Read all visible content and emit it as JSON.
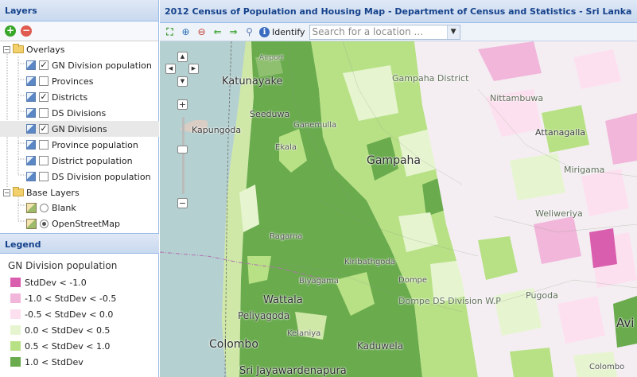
{
  "layers_panel": {
    "title": "Layers",
    "overlays_label": "Overlays",
    "overlays": [
      {
        "label": "GN Division population",
        "checked": true
      },
      {
        "label": "Provinces",
        "checked": false
      },
      {
        "label": "Districts",
        "checked": true
      },
      {
        "label": "DS Divisions",
        "checked": false
      },
      {
        "label": "GN Divisions",
        "checked": true
      },
      {
        "label": "Province population",
        "checked": false
      },
      {
        "label": "District population",
        "checked": false
      },
      {
        "label": "DS Division population",
        "checked": false
      }
    ],
    "base_layers_label": "Base Layers",
    "base_layers": [
      {
        "label": "Blank",
        "selected": false
      },
      {
        "label": "OpenStreetMap",
        "selected": true
      }
    ]
  },
  "legend_panel": {
    "title": "Legend",
    "layer_title": "GN Division population",
    "items": [
      {
        "label": "StdDev < -1.0",
        "color": "#d95fae"
      },
      {
        "label": "-1.0 < StdDev < -0.5",
        "color": "#f1b6da"
      },
      {
        "label": "-0.5 < StdDev < 0.0",
        "color": "#fde0ef"
      },
      {
        "label": "0.0 < StdDev < 0.5",
        "color": "#e6f5d0"
      },
      {
        "label": "0.5 < StdDev < 1.0",
        "color": "#b8e186"
      },
      {
        "label": "1.0 < StdDev",
        "color": "#6aab4e"
      }
    ]
  },
  "map_title": "2012 Census of Population and Housing Map - Department of Census and Statistics - Sri Lanka",
  "toolbar": {
    "identify_label": "Identify",
    "search_placeholder": "Search for a location ..."
  },
  "map_labels": {
    "katunayake": "Katunayake",
    "seeduwa": "Seeduwa",
    "kapungoda": "Kapungoda",
    "gampaha": "Gampaha",
    "gampaha_district": "Gampaha District",
    "attanagalla": "Attanagalla",
    "mirigama": "Mirigama",
    "watala": "Wattala",
    "peliyagoda": "Peliyagoda",
    "colombo": "Colombo",
    "kaduwela": "Kaduwela",
    "sri_jayawardenapura": "Sri Jayawardenapura",
    "avissawella": "Avi",
    "airport": "Airport",
    "ekala": "Ekala",
    "ragama": "Ragama",
    "kiribathgoda": "Kiribathgoda",
    "kelaniya": "Kelaniya",
    "dompe": "Dompe",
    "biyagama": "Biyagama",
    "colombo_bottom": "Colombo",
    "pugoda": "Pugoda",
    "ganemulla": "Ganemulla",
    "weliweriya": "Weliweriya",
    "nittambuwa": "Nittambuwa",
    "ds_division": "Dompe DS Division W.P"
  }
}
